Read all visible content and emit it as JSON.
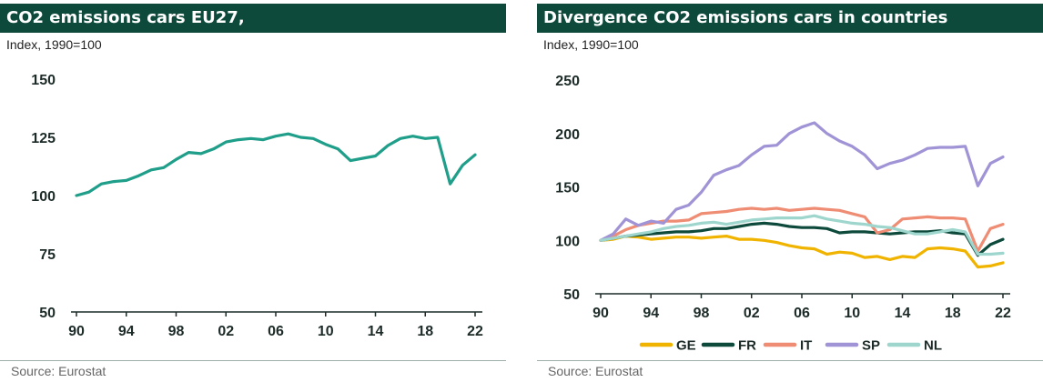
{
  "source": "Source: Eurostat",
  "chart_data": [
    {
      "type": "line",
      "title": "CO2 emissions cars EU27,",
      "ylabel": "Index, 1990=100",
      "ylim": [
        50,
        150
      ],
      "yticks": [
        50,
        75,
        100,
        125,
        150
      ],
      "xlim": [
        1990,
        2022
      ],
      "xticks": [
        1990,
        1994,
        1998,
        2002,
        2006,
        2010,
        2014,
        2018,
        2022
      ],
      "xtick_labels": [
        "90",
        "94",
        "98",
        "02",
        "06",
        "10",
        "14",
        "18",
        "22"
      ],
      "x": [
        1990,
        1991,
        1992,
        1993,
        1994,
        1995,
        1996,
        1997,
        1998,
        1999,
        2000,
        2001,
        2002,
        2003,
        2004,
        2005,
        2006,
        2007,
        2008,
        2009,
        2010,
        2011,
        2012,
        2013,
        2014,
        2015,
        2016,
        2017,
        2018,
        2019,
        2020,
        2021,
        2022
      ],
      "series": [
        {
          "name": "",
          "color": "#1f9e8a",
          "values": [
            100,
            101.5,
            105,
            106,
            106.5,
            108.5,
            111,
            112,
            115.5,
            118.5,
            118,
            120,
            123,
            124,
            124.5,
            124,
            125.5,
            126.5,
            125,
            124.5,
            122,
            120,
            115,
            116,
            117,
            121.5,
            124.5,
            125.5,
            124.5,
            125,
            105,
            113,
            117.5
          ]
        }
      ]
    },
    {
      "type": "line",
      "title": "Divergence CO2 emissions cars in countries",
      "ylabel": "Index, 1990=100",
      "ylim": [
        50,
        250
      ],
      "yticks": [
        50,
        100,
        150,
        200,
        250
      ],
      "xlim": [
        1990,
        2022
      ],
      "xticks": [
        1990,
        1994,
        1998,
        2002,
        2006,
        2010,
        2014,
        2018,
        2022
      ],
      "xtick_labels": [
        "90",
        "94",
        "98",
        "02",
        "06",
        "10",
        "14",
        "18",
        "22"
      ],
      "x": [
        1990,
        1991,
        1992,
        1993,
        1994,
        1995,
        1996,
        1997,
        1998,
        1999,
        2000,
        2001,
        2002,
        2003,
        2004,
        2005,
        2006,
        2007,
        2008,
        2009,
        2010,
        2011,
        2012,
        2013,
        2014,
        2015,
        2016,
        2017,
        2018,
        2019,
        2020,
        2021,
        2022
      ],
      "legend_position": "bottom",
      "series": [
        {
          "name": "GE",
          "color": "#f0b400",
          "values": [
            100,
            101,
            104,
            103,
            101,
            102,
            103,
            103,
            102,
            103,
            104,
            101,
            101,
            100,
            98,
            95,
            93,
            92,
            87,
            89,
            88,
            84,
            85,
            82,
            85,
            84,
            92,
            93,
            92,
            90,
            75,
            76,
            79
          ]
        },
        {
          "name": "FR",
          "color": "#0e4a3c",
          "values": [
            100,
            102,
            104,
            105,
            106,
            107,
            108,
            108,
            109,
            111,
            111,
            113,
            115,
            116,
            115,
            113,
            112,
            112,
            111,
            107,
            108,
            108,
            107,
            106,
            107,
            108,
            108,
            109,
            107,
            106,
            86,
            96,
            101
          ]
        },
        {
          "name": "IT",
          "color": "#ef8c74",
          "values": [
            100,
            104,
            110,
            114,
            116,
            118,
            118,
            119,
            125,
            126,
            127,
            129,
            130,
            129,
            130,
            128,
            129,
            130,
            129,
            128,
            125,
            122,
            107,
            110,
            120,
            121,
            122,
            121,
            121,
            120,
            90,
            111,
            115
          ]
        },
        {
          "name": "SP",
          "color": "#a093d6",
          "values": [
            100,
            106,
            120,
            114,
            118,
            116,
            129,
            133,
            145,
            161,
            166,
            170,
            180,
            188,
            189,
            200,
            206,
            210,
            200,
            193,
            188,
            180,
            167,
            172,
            175,
            180,
            186,
            187,
            187,
            188,
            151,
            172,
            178
          ]
        },
        {
          "name": "NL",
          "color": "#9ed6cd",
          "values": [
            100,
            102,
            104,
            106,
            108,
            111,
            113,
            114,
            116,
            117,
            115,
            117,
            119,
            120,
            121,
            121,
            121,
            123,
            120,
            118,
            116,
            115,
            113,
            112,
            109,
            106,
            106,
            108,
            110,
            108,
            87,
            87,
            88
          ]
        }
      ]
    }
  ]
}
